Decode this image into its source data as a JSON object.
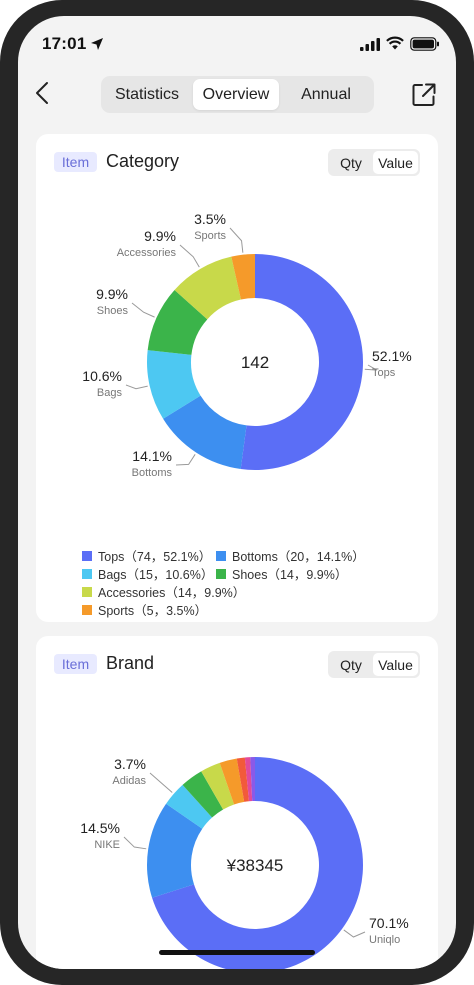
{
  "status_bar": {
    "time": "17:01"
  },
  "tabs": [
    {
      "label": "Statistics",
      "selected": false
    },
    {
      "label": "Overview",
      "selected": true
    },
    {
      "label": "Annual",
      "selected": false
    }
  ],
  "category_card": {
    "tag": "Item",
    "title": "Category",
    "toggle": [
      "Qty",
      "Value"
    ],
    "center_label": "142",
    "legend": [
      {
        "text": "Tops（74，52.1%）",
        "color": "#5b6ef6"
      },
      {
        "text": "Bottoms（20，14.1%）",
        "color": "#3d8ff0"
      },
      {
        "text": "Bags（15，10.6%）",
        "color": "#4dc8f2"
      },
      {
        "text": "Shoes（14，9.9%）",
        "color": "#3bb44a"
      },
      {
        "text": "Accessories（14，9.9%）",
        "color": "#c8d94a"
      },
      {
        "text": "Sports（5，3.5%）",
        "color": "#f59a2a"
      }
    ],
    "chart_data": {
      "type": "pie",
      "categories": [
        "Tops",
        "Bottoms",
        "Bags",
        "Shoes",
        "Accessories",
        "Sports"
      ],
      "values": [
        74,
        20,
        15,
        14,
        14,
        5
      ],
      "percent_labels": [
        "52.1%",
        "14.1%",
        "10.6%",
        "9.9%",
        "9.9%",
        "3.5%"
      ],
      "colors": [
        "#5b6ef6",
        "#3d8ff0",
        "#4dc8f2",
        "#3bb44a",
        "#c8d94a",
        "#f59a2a"
      ]
    }
  },
  "brand_card": {
    "tag": "Item",
    "title": "Brand",
    "toggle": [
      "Qty",
      "Value"
    ],
    "center_label": "¥38345",
    "chart_data": {
      "type": "pie",
      "categories": [
        "Uniqlo",
        "NIKE",
        "Adidas",
        "",
        "",
        "",
        "",
        "",
        ""
      ],
      "values": [
        70.1,
        14.5,
        3.7,
        3.4,
        3.0,
        2.6,
        1.2,
        0.8,
        0.7
      ],
      "percent_labels": [
        "70.1%",
        "14.5%",
        "3.7%",
        "",
        "",
        "",
        "",
        "",
        ""
      ],
      "colors": [
        "#5b6ef6",
        "#3d8ff0",
        "#4dc8f2",
        "#3bb44a",
        "#c8d94a",
        "#f59a2a",
        "#f25a3a",
        "#e24a9a",
        "#8a5ae8"
      ]
    }
  }
}
